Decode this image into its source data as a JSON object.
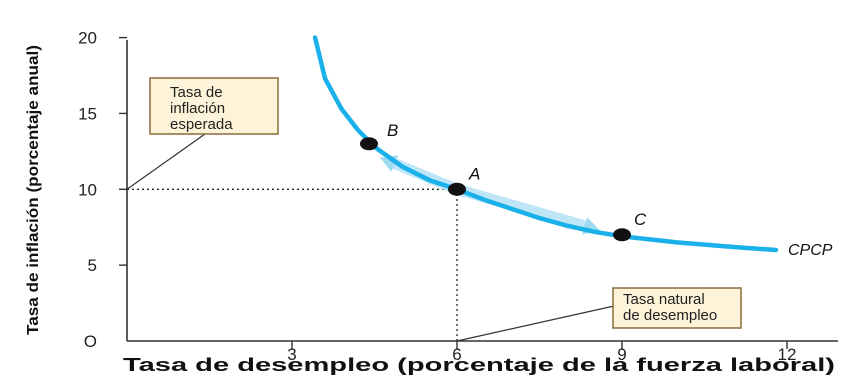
{
  "colors": {
    "curve": "#1ab0ea",
    "arrow": "#bfe6f7",
    "callout_fill": "#fdf3d8",
    "callout_border": "#8a6b3a",
    "point": "#111111",
    "axis": "#333333"
  },
  "chart_data": {
    "type": "line",
    "xlabel": "Tasa de desempleo (porcentaje de la fuerza laboral)",
    "ylabel": "Tasa de inflación (porcentaje anual)",
    "xlim": [
      0,
      12.6
    ],
    "ylim": [
      0,
      20.5
    ],
    "x_ticks": [
      0,
      3,
      6,
      9,
      12
    ],
    "y_ticks": [
      0,
      5,
      10,
      15,
      20
    ],
    "x_tick_labels": [
      "3",
      "6",
      "9",
      "12"
    ],
    "y_tick_labels": [
      "O",
      "5",
      "10",
      "15",
      "20"
    ],
    "grid": false,
    "series": [
      {
        "name": "CPCP",
        "x": [
          3.42,
          3.6,
          3.9,
          4.2,
          4.5,
          5.0,
          5.5,
          6.0,
          6.5,
          7.0,
          7.5,
          8.0,
          8.5,
          9.0,
          10.0,
          11.0,
          11.8
        ],
        "y": [
          20.0,
          17.3,
          15.3,
          13.9,
          12.8,
          11.5,
          10.6,
          10.0,
          9.3,
          8.7,
          8.1,
          7.6,
          7.2,
          6.9,
          6.5,
          6.2,
          6.0
        ]
      }
    ],
    "points": [
      {
        "label": "B",
        "x": 4.4,
        "y": 13.0
      },
      {
        "label": "A",
        "x": 6.0,
        "y": 10.0
      },
      {
        "label": "C",
        "x": 9.0,
        "y": 7.0
      }
    ],
    "arrows": [
      {
        "from_x": 6.0,
        "from_y": 10.0,
        "to_x": 4.6,
        "to_y": 12.1
      },
      {
        "from_x": 6.0,
        "from_y": 10.0,
        "to_x": 8.6,
        "to_y": 7.3
      }
    ],
    "reference_lines": [
      {
        "orientation": "horizontal",
        "y": 10,
        "x_from": 0,
        "x_to": 6
      },
      {
        "orientation": "vertical",
        "x": 6,
        "y_from": 0,
        "y_to": 10
      }
    ],
    "annotations": [
      {
        "text": "Tasa de\ninflación\nesperada",
        "target_x": 0,
        "target_y": 10
      },
      {
        "text": "Tasa natural\nde desempleo",
        "target_x": 6,
        "target_y": 0
      }
    ]
  }
}
